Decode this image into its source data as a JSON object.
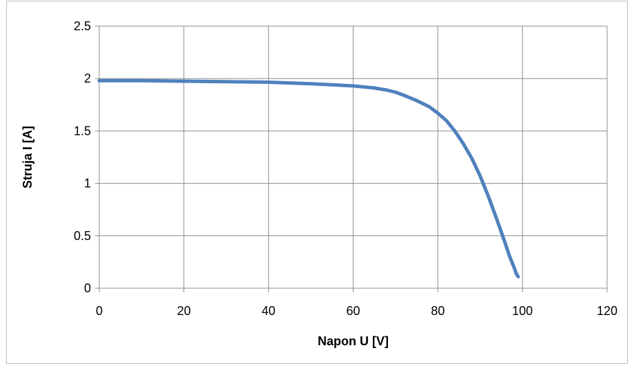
{
  "chart_data": {
    "type": "line",
    "title": "",
    "xlabel": "Napon U [V]",
    "ylabel": "Struja I [A]",
    "xlim": [
      0,
      120
    ],
    "ylim": [
      0,
      2.5
    ],
    "x_ticks": [
      "0",
      "20",
      "40",
      "60",
      "80",
      "100",
      "120"
    ],
    "y_ticks": [
      "0",
      "0.5",
      "1",
      "1.5",
      "2",
      "2.5"
    ],
    "grid": true,
    "legend": "none",
    "series": [
      {
        "color": "#4f81bd",
        "x": [
          0,
          10,
          20,
          30,
          40,
          50,
          55,
          60,
          65,
          68,
          70,
          72,
          75,
          78,
          80,
          82,
          84,
          86,
          88,
          90,
          92,
          94,
          96,
          97,
          98,
          98.5,
          99
        ],
        "y": [
          1.98,
          1.98,
          1.975,
          1.97,
          1.965,
          1.95,
          1.94,
          1.93,
          1.91,
          1.89,
          1.87,
          1.84,
          1.79,
          1.73,
          1.67,
          1.6,
          1.5,
          1.38,
          1.24,
          1.07,
          0.87,
          0.65,
          0.42,
          0.3,
          0.2,
          0.14,
          0.11
        ]
      }
    ]
  }
}
